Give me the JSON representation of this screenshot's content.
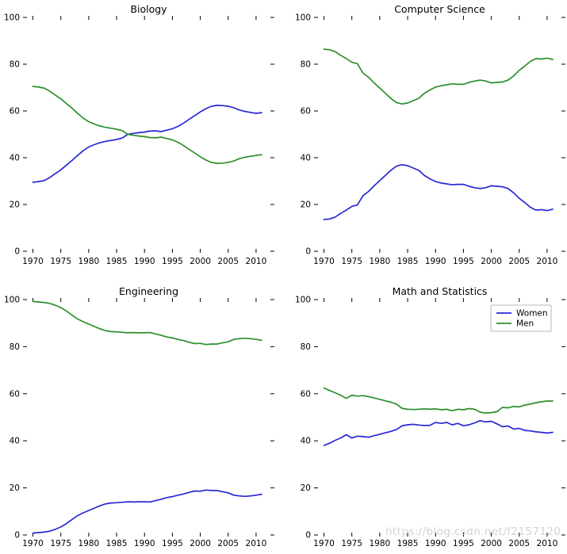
{
  "page": {
    "background": "#ffffff"
  },
  "watermark": {
    "text": "https://blog.csdn.net/f2157120",
    "color": "#d2d2d2"
  },
  "palette": {
    "women": "#2828d4",
    "men": "#2b8f2b",
    "text": "#000000",
    "legend_border": "#b9b9b9"
  },
  "years": [
    1970,
    1971,
    1972,
    1973,
    1974,
    1975,
    1976,
    1977,
    1978,
    1979,
    1980,
    1981,
    1982,
    1983,
    1984,
    1985,
    1986,
    1987,
    1988,
    1989,
    1990,
    1991,
    1992,
    1993,
    1994,
    1995,
    1996,
    1997,
    1998,
    1999,
    2000,
    2001,
    2002,
    2003,
    2004,
    2005,
    2006,
    2007,
    2008,
    2009,
    2010,
    2011
  ],
  "chart_data": [
    {
      "type": "line",
      "title": "Biology",
      "xlabel": "",
      "ylabel": "",
      "x_ref": "years",
      "xlim": [
        1969.5,
        2012
      ],
      "ylim": [
        0,
        100
      ],
      "xticks": [
        1970,
        1975,
        1980,
        1985,
        1990,
        1995,
        2000,
        2005,
        2010
      ],
      "yticks": [
        0,
        20,
        40,
        60,
        80,
        100
      ],
      "grid": false,
      "legend": false,
      "series": [
        {
          "name": "Women",
          "color": "#2828d4",
          "values": [
            29.5,
            29.8,
            30.2,
            31.5,
            33.2,
            34.8,
            36.8,
            38.8,
            41.0,
            43.0,
            44.6,
            45.6,
            46.4,
            47.0,
            47.4,
            47.8,
            48.4,
            50.0,
            50.4,
            50.7,
            51.0,
            51.4,
            51.5,
            51.2,
            51.8,
            52.4,
            53.4,
            54.8,
            56.4,
            58.0,
            59.6,
            61.0,
            62.0,
            62.4,
            62.3,
            62.0,
            61.4,
            60.4,
            59.8,
            59.4,
            59.0,
            59.3
          ]
        },
        {
          "name": "Men",
          "color": "#2b8f2b",
          "values": [
            70.5,
            70.2,
            69.8,
            68.5,
            66.8,
            65.2,
            63.2,
            61.2,
            59.0,
            57.0,
            55.4,
            54.4,
            53.6,
            53.0,
            52.6,
            52.2,
            51.6,
            50.0,
            49.6,
            49.3,
            49.0,
            48.6,
            48.5,
            48.8,
            48.2,
            47.6,
            46.6,
            45.2,
            43.6,
            42.0,
            40.4,
            39.0,
            38.0,
            37.6,
            37.7,
            38.0,
            38.6,
            39.6,
            40.2,
            40.6,
            41.0,
            41.3
          ]
        }
      ]
    },
    {
      "type": "line",
      "title": "Computer Science",
      "xlabel": "",
      "ylabel": "",
      "x_ref": "years",
      "xlim": [
        1969.5,
        2012
      ],
      "ylim": [
        0,
        100
      ],
      "xticks": [
        1970,
        1975,
        1980,
        1985,
        1990,
        1995,
        2000,
        2005,
        2010
      ],
      "yticks": [
        0,
        20,
        40,
        60,
        80,
        100
      ],
      "grid": false,
      "legend": false,
      "series": [
        {
          "name": "Women",
          "color": "#2828d4",
          "values": [
            13.6,
            13.8,
            14.6,
            16.2,
            17.6,
            19.2,
            19.8,
            23.8,
            25.6,
            28.0,
            30.2,
            32.4,
            34.6,
            36.4,
            37.0,
            36.6,
            35.6,
            34.6,
            32.4,
            31.0,
            29.8,
            29.2,
            28.8,
            28.4,
            28.6,
            28.6,
            27.8,
            27.2,
            26.8,
            27.2,
            28.0,
            27.8,
            27.6,
            26.8,
            25.0,
            22.6,
            20.8,
            18.8,
            17.6,
            17.8,
            17.4,
            18.0
          ]
        },
        {
          "name": "Men",
          "color": "#2b8f2b",
          "values": [
            86.4,
            86.2,
            85.4,
            83.8,
            82.4,
            80.8,
            80.2,
            76.2,
            74.4,
            72.0,
            69.8,
            67.6,
            65.4,
            63.6,
            63.0,
            63.4,
            64.4,
            65.4,
            67.6,
            69.0,
            70.2,
            70.8,
            71.2,
            71.6,
            71.4,
            71.4,
            72.2,
            72.8,
            73.2,
            72.8,
            72.0,
            72.2,
            72.4,
            73.2,
            75.0,
            77.4,
            79.2,
            81.2,
            82.4,
            82.2,
            82.6,
            82.0
          ]
        }
      ]
    },
    {
      "type": "line",
      "title": "Engineering",
      "xlabel": "",
      "ylabel": "",
      "x_ref": "years",
      "xlim": [
        1969.5,
        2012
      ],
      "ylim": [
        0,
        100
      ],
      "xticks": [
        1970,
        1975,
        1980,
        1985,
        1990,
        1995,
        2000,
        2005,
        2010
      ],
      "yticks": [
        0,
        20,
        40,
        60,
        80,
        100
      ],
      "grid": false,
      "legend": false,
      "series": [
        {
          "name": "Women",
          "color": "#2828d4",
          "values": [
            0.8,
            1.0,
            1.2,
            1.6,
            2.4,
            3.4,
            4.8,
            6.6,
            8.2,
            9.4,
            10.4,
            11.4,
            12.4,
            13.2,
            13.6,
            13.7,
            13.9,
            14.1,
            14.0,
            14.1,
            14.1,
            14.0,
            14.6,
            15.2,
            15.9,
            16.3,
            16.9,
            17.4,
            18.1,
            18.7,
            18.6,
            19.1,
            18.9,
            18.9,
            18.4,
            17.9,
            16.9,
            16.6,
            16.4,
            16.6,
            16.9,
            17.3
          ]
        },
        {
          "name": "Men",
          "color": "#2b8f2b",
          "values": [
            99.2,
            99.0,
            98.8,
            98.4,
            97.6,
            96.6,
            95.2,
            93.4,
            91.8,
            90.6,
            89.6,
            88.6,
            87.6,
            86.8,
            86.4,
            86.3,
            86.1,
            85.9,
            86.0,
            85.9,
            85.9,
            86.0,
            85.4,
            84.8,
            84.1,
            83.7,
            83.1,
            82.6,
            81.9,
            81.3,
            81.4,
            80.9,
            81.1,
            81.1,
            81.6,
            82.1,
            83.1,
            83.4,
            83.6,
            83.4,
            83.1,
            82.7
          ]
        }
      ]
    },
    {
      "type": "line",
      "title": "Math and Statistics",
      "xlabel": "",
      "ylabel": "",
      "x_ref": "years",
      "xlim": [
        1969.5,
        2012
      ],
      "ylim": [
        0,
        100
      ],
      "xticks": [
        1970,
        1975,
        1980,
        1985,
        1990,
        1995,
        2000,
        2005,
        2010
      ],
      "yticks": [
        0,
        20,
        40,
        60,
        80,
        100
      ],
      "grid": false,
      "legend": true,
      "legend_position": "upper right",
      "legend_labels": [
        "Women",
        "Men"
      ],
      "series": [
        {
          "name": "Women",
          "color": "#2828d4",
          "values": [
            38.0,
            39.0,
            40.2,
            41.2,
            42.6,
            41.2,
            42.0,
            41.8,
            41.5,
            42.2,
            42.8,
            43.4,
            44.0,
            44.8,
            46.4,
            46.8,
            47.0,
            46.7,
            46.5,
            46.6,
            47.8,
            47.4,
            47.8,
            46.8,
            47.4,
            46.4,
            46.8,
            47.6,
            48.6,
            48.0,
            48.3,
            47.2,
            46.0,
            46.3,
            45.0,
            45.3,
            44.4,
            44.2,
            43.8,
            43.6,
            43.3,
            43.6
          ]
        },
        {
          "name": "Men",
          "color": "#2b8f2b",
          "values": [
            62.4,
            61.4,
            60.4,
            59.4,
            58.0,
            59.4,
            59.0,
            59.2,
            58.8,
            58.2,
            57.6,
            57.0,
            56.4,
            55.6,
            53.8,
            53.4,
            53.3,
            53.4,
            53.6,
            53.4,
            53.6,
            53.2,
            53.4,
            52.8,
            53.4,
            53.2,
            53.7,
            53.4,
            52.2,
            51.8,
            52.0,
            52.4,
            54.2,
            54.0,
            54.6,
            54.4,
            55.2,
            55.6,
            56.2,
            56.6,
            56.9,
            56.9
          ]
        }
      ]
    }
  ]
}
